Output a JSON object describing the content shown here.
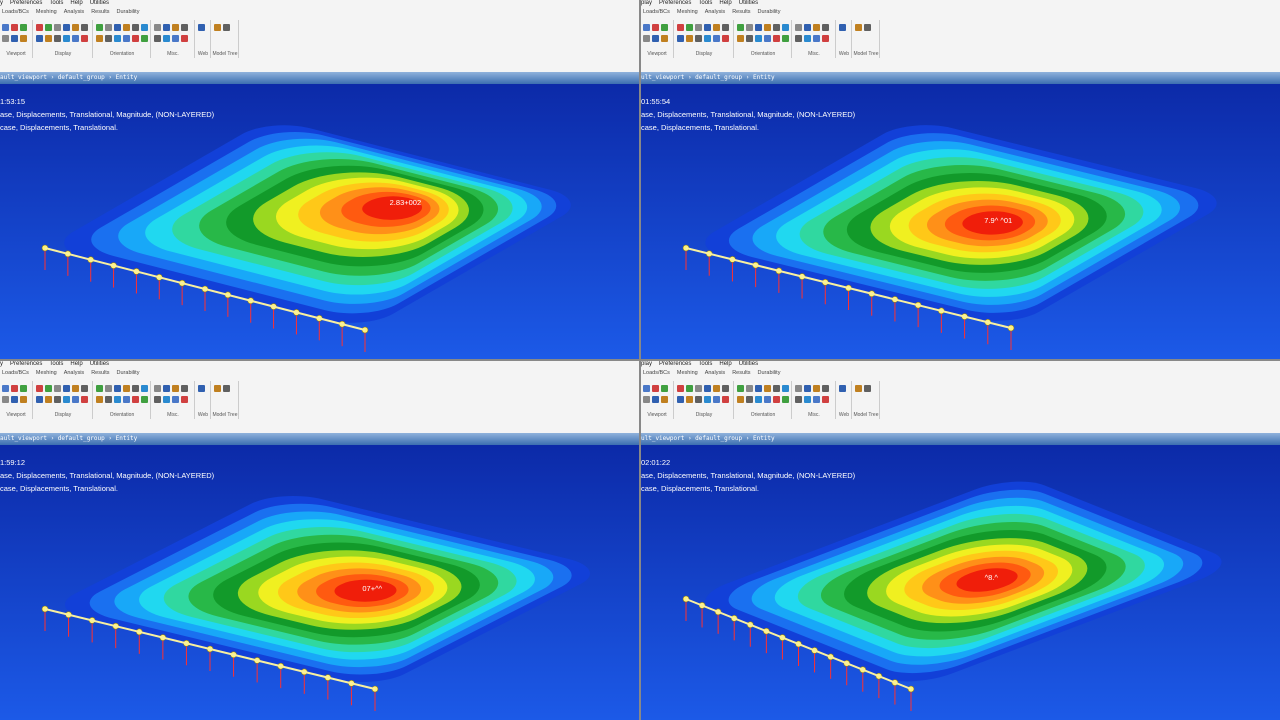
{
  "panels": [
    {
      "menu": [
        "y",
        "Preferences",
        "Tools",
        "Help",
        "Utilities"
      ],
      "tabs": [
        "Loads/BCs",
        "Meshing",
        "Analysis",
        "Results",
        "Durability"
      ],
      "groups": [
        "Viewport",
        "Display",
        "Orientation",
        "Misc.",
        "Web",
        "Model Tree"
      ],
      "breadcrumb": "ault_viewport › default_group › Entity",
      "time": "1:53:15",
      "result_lines": [
        "ase, Displacements, Translational, Magnitude, (NON-LAYERED)",
        "case, Displacements, Translational."
      ],
      "peak_label": "2.83+002"
    },
    {
      "menu": [
        "play",
        "Preferences",
        "Tools",
        "Help",
        "Utilities"
      ],
      "tabs": [
        "Loads/BCs",
        "Meshing",
        "Analysis",
        "Results",
        "Durability"
      ],
      "groups": [
        "Viewport",
        "Display",
        "Orientation",
        "Misc.",
        "Web",
        "Model Tree"
      ],
      "breadcrumb": "ult_viewport › default_group › Entity",
      "time": "01:55:54",
      "result_lines": [
        "ase, Displacements, Translational, Magnitude, (NON-LAYERED)",
        "case, Displacements, Translational."
      ],
      "peak_label": "7.9^ ^01"
    },
    {
      "menu": [
        "y",
        "Preferences",
        "Tools",
        "Help",
        "Utilities"
      ],
      "tabs": [
        "Loads/BCs",
        "Meshing",
        "Analysis",
        "Results",
        "Durability"
      ],
      "groups": [
        "Viewport",
        "Display",
        "Orientation",
        "Misc.",
        "Web",
        "Model Tree"
      ],
      "breadcrumb": "ault_viewport › default_group › Entity",
      "time": "1:59:12",
      "result_lines": [
        "ase, Displacements, Translational, Magnitude, (NON-LAYERED)",
        "case, Displacements, Translational."
      ],
      "peak_label": "07+^^"
    },
    {
      "menu": [
        "play",
        "Preferences",
        "Tools",
        "Help",
        "Utilities"
      ],
      "tabs": [
        "Loads/BCs",
        "Meshing",
        "Analysis",
        "Results",
        "Durability"
      ],
      "groups": [
        "Viewport",
        "Display",
        "Orientation",
        "Misc.",
        "Web",
        "Model Tree"
      ],
      "breadcrumb": "ult_viewport › default_group › Entity",
      "time": "02:01:22",
      "result_lines": [
        "ase, Displacements, Translational, Magnitude, (NON-LAYERED)",
        "case, Displacements, Translational."
      ],
      "peak_label": "^8.^"
    }
  ]
}
